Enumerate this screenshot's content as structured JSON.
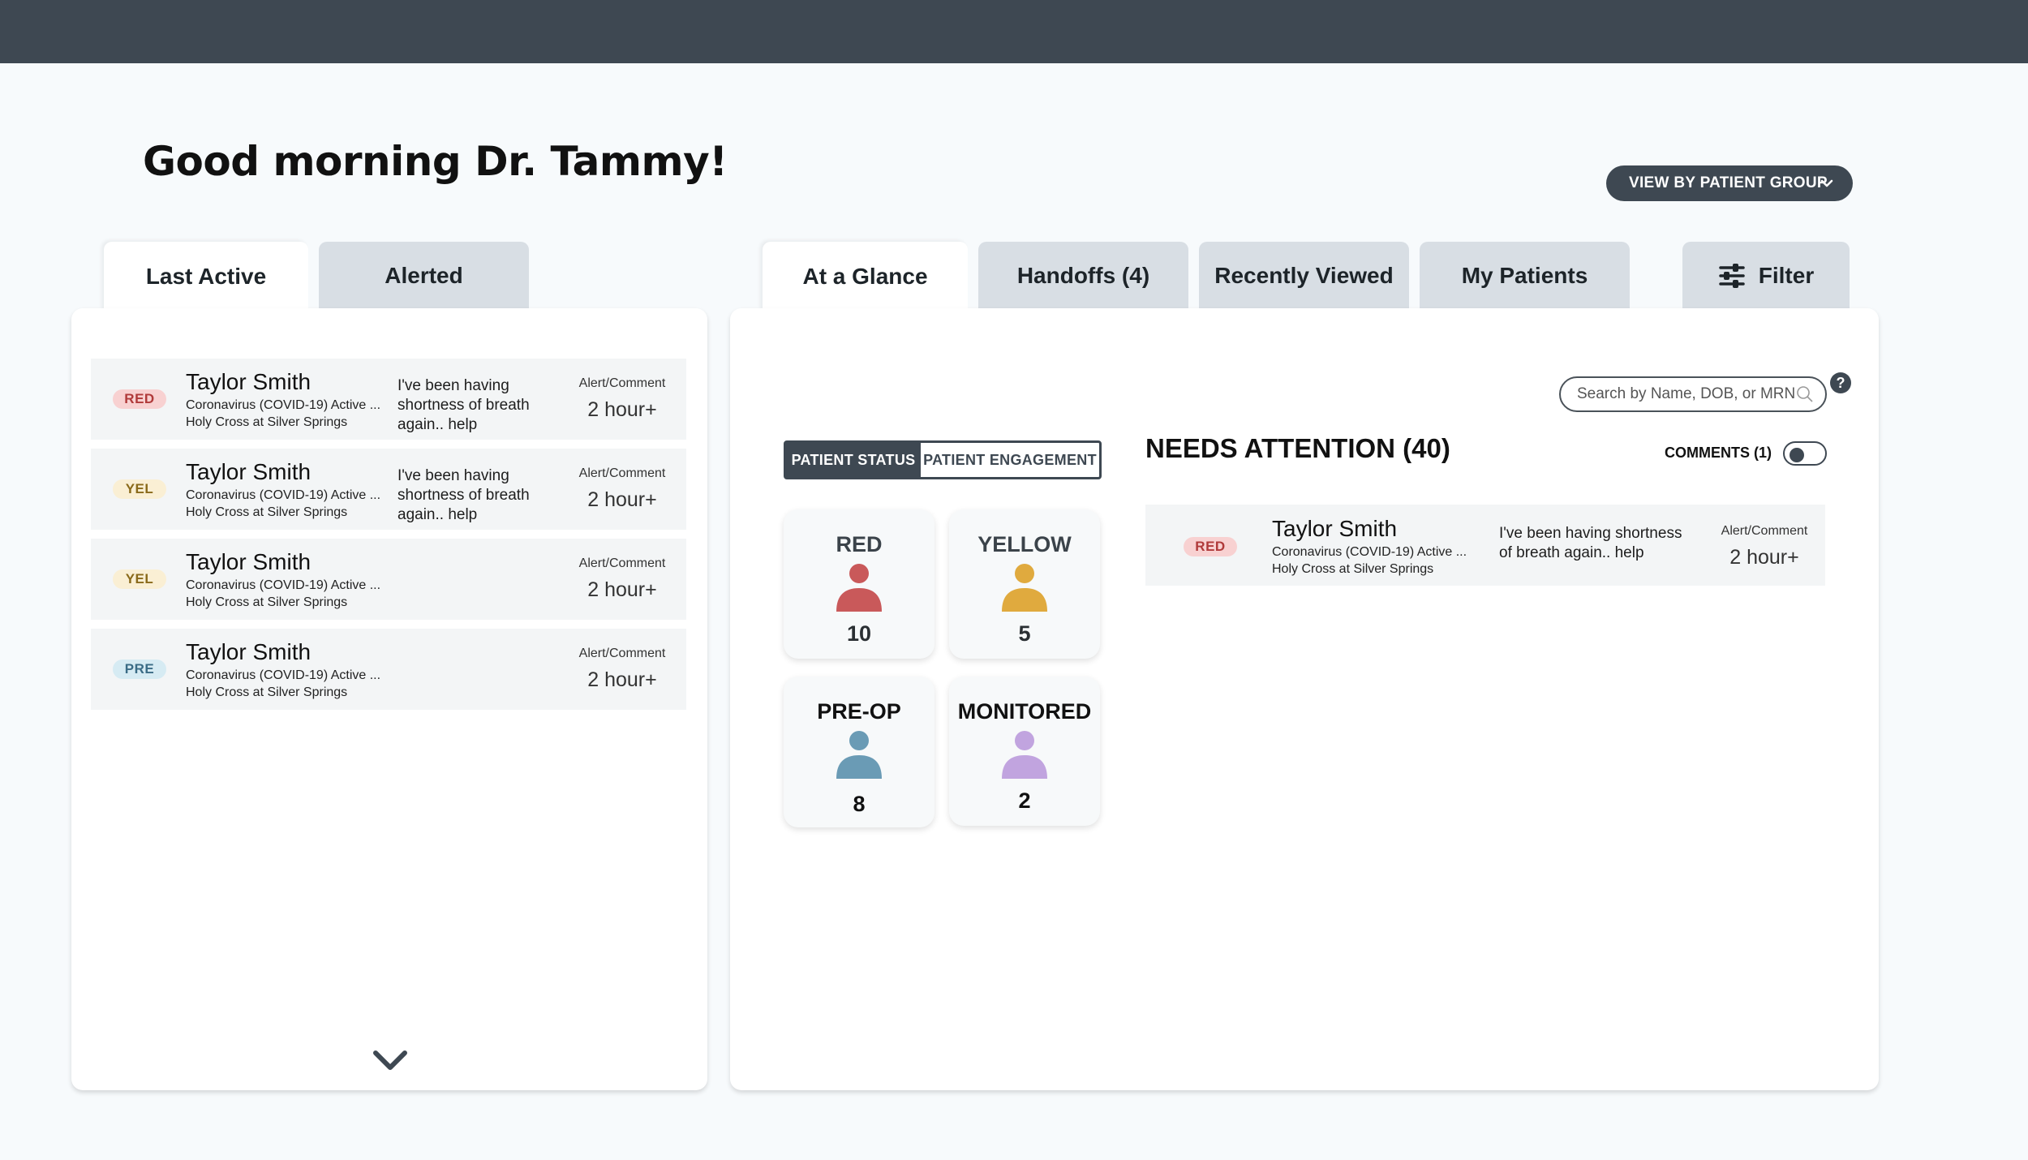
{
  "header": {
    "greeting": "Good morning Dr. Tammy!",
    "group_button": "VIEW BY PATIENT GROUP"
  },
  "left_tabs": [
    "Last Active",
    "Alerted"
  ],
  "right_tabs": [
    "At a Glance",
    "Handoffs (4)",
    "Recently Viewed",
    "My Patients",
    "Filter"
  ],
  "last_active": [
    {
      "badge": "RED",
      "name": "Taylor Smith",
      "diagnosis": "Coronavirus (COVID-19) Active ...",
      "facility": "Holy Cross at Silver Springs",
      "message": "I've been having shortness of breath again.. help",
      "alert_label": "Alert/Comment",
      "time": "2 hour+"
    },
    {
      "badge": "YEL",
      "name": "Taylor Smith",
      "diagnosis": "Coronavirus (COVID-19) Active ...",
      "facility": "Holy Cross at Silver Springs",
      "message": "I've been having shortness of breath again.. help",
      "alert_label": "Alert/Comment",
      "time": "2 hour+"
    },
    {
      "badge": "YEL",
      "name": "Taylor Smith",
      "diagnosis": "Coronavirus (COVID-19) Active ...",
      "facility": "Holy Cross at Silver Springs",
      "message": "",
      "alert_label": "Alert/Comment",
      "time": "2 hour+"
    },
    {
      "badge": "PRE",
      "name": "Taylor Smith",
      "diagnosis": "Coronavirus (COVID-19) Active ...",
      "facility": "Holy Cross at Silver Springs",
      "message": "",
      "alert_label": "Alert/Comment",
      "time": "2 hour+"
    }
  ],
  "glance": {
    "search_placeholder": "Search by Name, DOB, or MRN",
    "help": "?",
    "segment": {
      "active": "PATIENT STATUS",
      "inactive": "PATIENT ENGAGEMENT"
    },
    "cards": [
      {
        "title": "RED",
        "count": "10",
        "color": "#c9595a"
      },
      {
        "title": "YELLOW",
        "count": "5",
        "color": "#e0aa3e"
      },
      {
        "title": "PRE-OP",
        "count": "8",
        "color": "#6a9bb5"
      },
      {
        "title": "MONITORED",
        "count": "2",
        "color": "#c1a4df"
      }
    ],
    "needs_attention_title": "NEEDS ATTENTION (40)",
    "comments_label": "COMMENTS (1)",
    "needs_attention": [
      {
        "badge": "RED",
        "name": "Taylor Smith",
        "diagnosis": "Coronavirus (COVID-19) Active ...",
        "facility": "Holy Cross at Silver Springs",
        "message": "I've been having shortness of breath again.. help",
        "alert_label": "Alert/Comment",
        "time": "2 hour+"
      }
    ]
  },
  "colors": {
    "topbar": "#3e4852",
    "tab_inactive": "#d8dee4",
    "badge_red": "#f8d1d1",
    "badge_yel": "#faefd4",
    "badge_pre": "#d6ebf3"
  },
  "icons": {
    "chevron": "chevron-down-icon",
    "filter": "sliders-icon",
    "search": "search-icon",
    "person": "person-icon"
  }
}
